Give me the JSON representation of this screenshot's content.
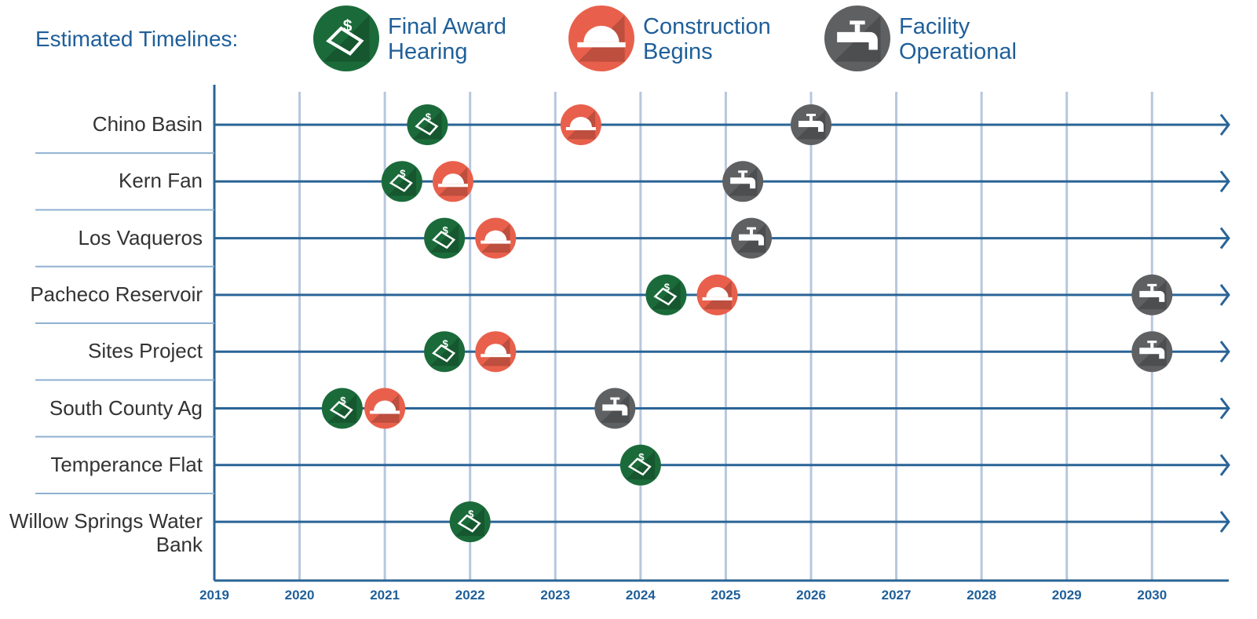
{
  "chart_data": {
    "type": "timeline",
    "legend_title": "Estimated Timelines:",
    "categories": [
      "Chino Basin",
      "Kern Fan",
      "Los Vaqueros",
      "Pacheco Reservoir",
      "Sites Project",
      "South County Ag",
      "Temperance Flat",
      "Willow Springs Water Bank"
    ],
    "series": [
      {
        "name": "Final Award Hearing",
        "color": "#1b6b3a",
        "values": [
          2021.5,
          2021.2,
          2021.7,
          2024.3,
          2021.7,
          2020.5,
          2024.0,
          2022.0
        ]
      },
      {
        "name": "Construction Begins",
        "color": "#e8604c",
        "values": [
          2023.3,
          2021.8,
          2022.3,
          2024.9,
          2022.3,
          2021.0,
          null,
          null
        ]
      },
      {
        "name": "Facility Operational",
        "color": "#5f6062",
        "values": [
          2026.0,
          2025.2,
          2025.3,
          2030.0,
          2030.0,
          2023.7,
          null,
          null
        ]
      }
    ],
    "xlim": [
      2019,
      2030.9
    ],
    "xticks": [
      2019,
      2020,
      2021,
      2022,
      2023,
      2024,
      2025,
      2026,
      2027,
      2028,
      2029,
      2030
    ],
    "grid": true
  }
}
